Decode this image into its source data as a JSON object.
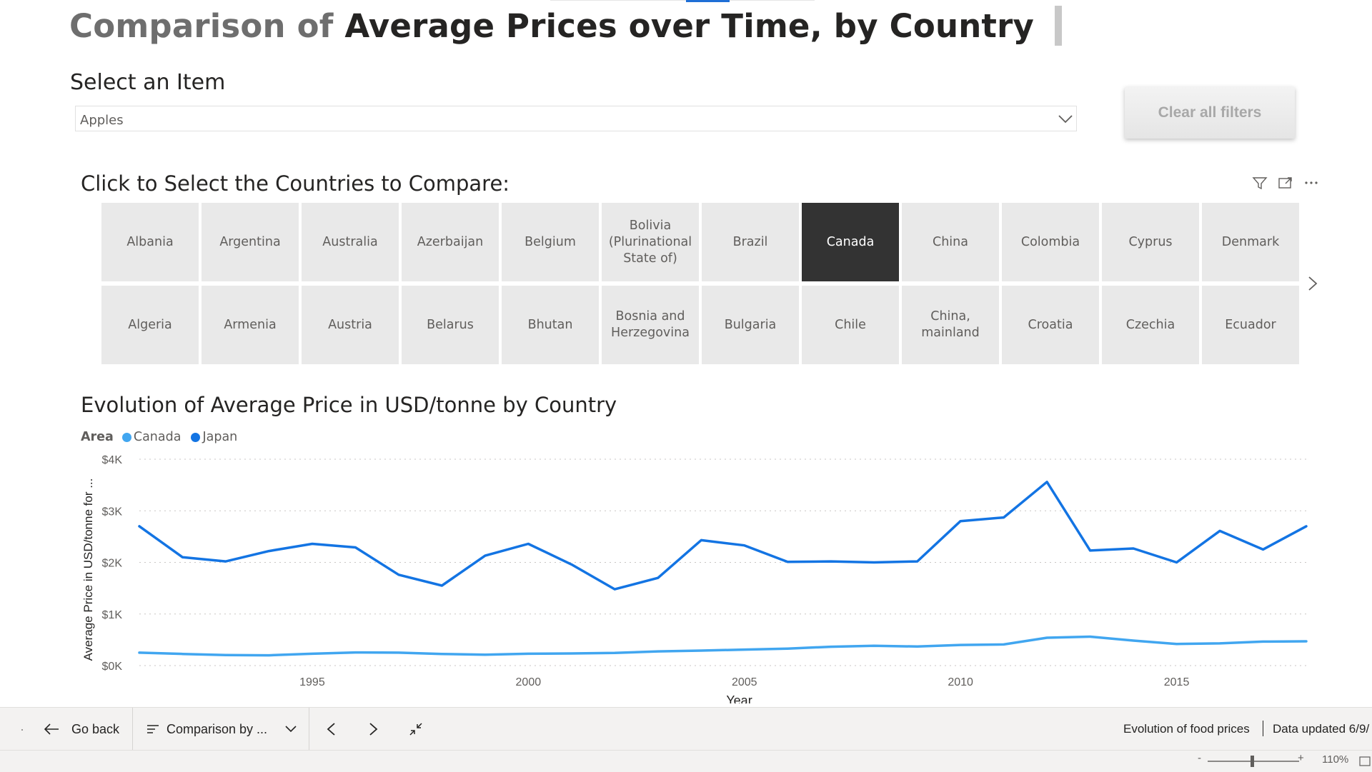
{
  "title": {
    "prefix": "Comparison of",
    "main": "Average Prices over Time, by Country"
  },
  "item_select": {
    "label": "Select an Item",
    "value": "Apples"
  },
  "clear_button": "Clear all filters",
  "country_slicer": {
    "title": "Click to Select the Countries to Compare:",
    "row1": [
      "Albania",
      "Argentina",
      "Australia",
      "Azerbaijan",
      "Belgium",
      "Bolivia (Plurinational State of)",
      "Brazil",
      "Canada",
      "China",
      "Colombia",
      "Cyprus",
      "Denmark"
    ],
    "row2": [
      "Algeria",
      "Armenia",
      "Austria",
      "Belarus",
      "Bhutan",
      "Bosnia and Herzegovina",
      "Bulgaria",
      "Chile",
      "China, mainland",
      "Croatia",
      "Czechia",
      "Ecuador"
    ],
    "selected": "Canada",
    "selected_color": "#333333",
    "tile_color": "#e9e9e9",
    "icons": [
      "filter-icon",
      "focus-mode-icon",
      "more-options-icon"
    ]
  },
  "chart_data": {
    "type": "line",
    "title": "Evolution of Average Price in USD/tonne by Country",
    "xlabel": "Year",
    "ylabel": "Average Price in USD/tonne for ...",
    "legend_title": "Area",
    "legend_position": "top-left",
    "xlim": [
      1991,
      2018
    ],
    "ylim": [
      0,
      4000
    ],
    "x_ticks": [
      1995,
      2000,
      2005,
      2010,
      2015
    ],
    "y_ticks": [
      0,
      1000,
      2000,
      3000,
      4000
    ],
    "y_tick_labels": [
      "$0K",
      "$1K",
      "$2K",
      "$3K",
      "$4K"
    ],
    "grid": "horizontal-dotted",
    "x": [
      1991,
      1992,
      1993,
      1994,
      1995,
      1996,
      1997,
      1998,
      1999,
      2000,
      2001,
      2002,
      2003,
      2004,
      2005,
      2006,
      2007,
      2008,
      2009,
      2010,
      2011,
      2012,
      2013,
      2014,
      2015,
      2016,
      2017,
      2018
    ],
    "series": [
      {
        "name": "Canada",
        "color": "#41a6f0",
        "values": [
          250,
          225,
          205,
          200,
          230,
          255,
          250,
          225,
          210,
          230,
          235,
          245,
          275,
          290,
          310,
          330,
          365,
          385,
          370,
          400,
          410,
          540,
          560,
          485,
          420,
          430,
          465,
          470
        ]
      },
      {
        "name": "Japan",
        "color": "#1374e3",
        "values": [
          2700,
          2100,
          2020,
          2220,
          2360,
          2290,
          1760,
          1550,
          2130,
          2360,
          1960,
          1480,
          1700,
          2430,
          2330,
          2010,
          2020,
          2000,
          2020,
          2800,
          2870,
          3560,
          2230,
          2270,
          2000,
          2610,
          2250,
          2700
        ]
      }
    ]
  },
  "nav": {
    "back": "Go back",
    "page": "Comparison by ...",
    "report_name": "Evolution of food prices",
    "updated": "Data updated 6/9/"
  },
  "status": {
    "zoom": "110%",
    "minus": "-",
    "plus": "+"
  }
}
